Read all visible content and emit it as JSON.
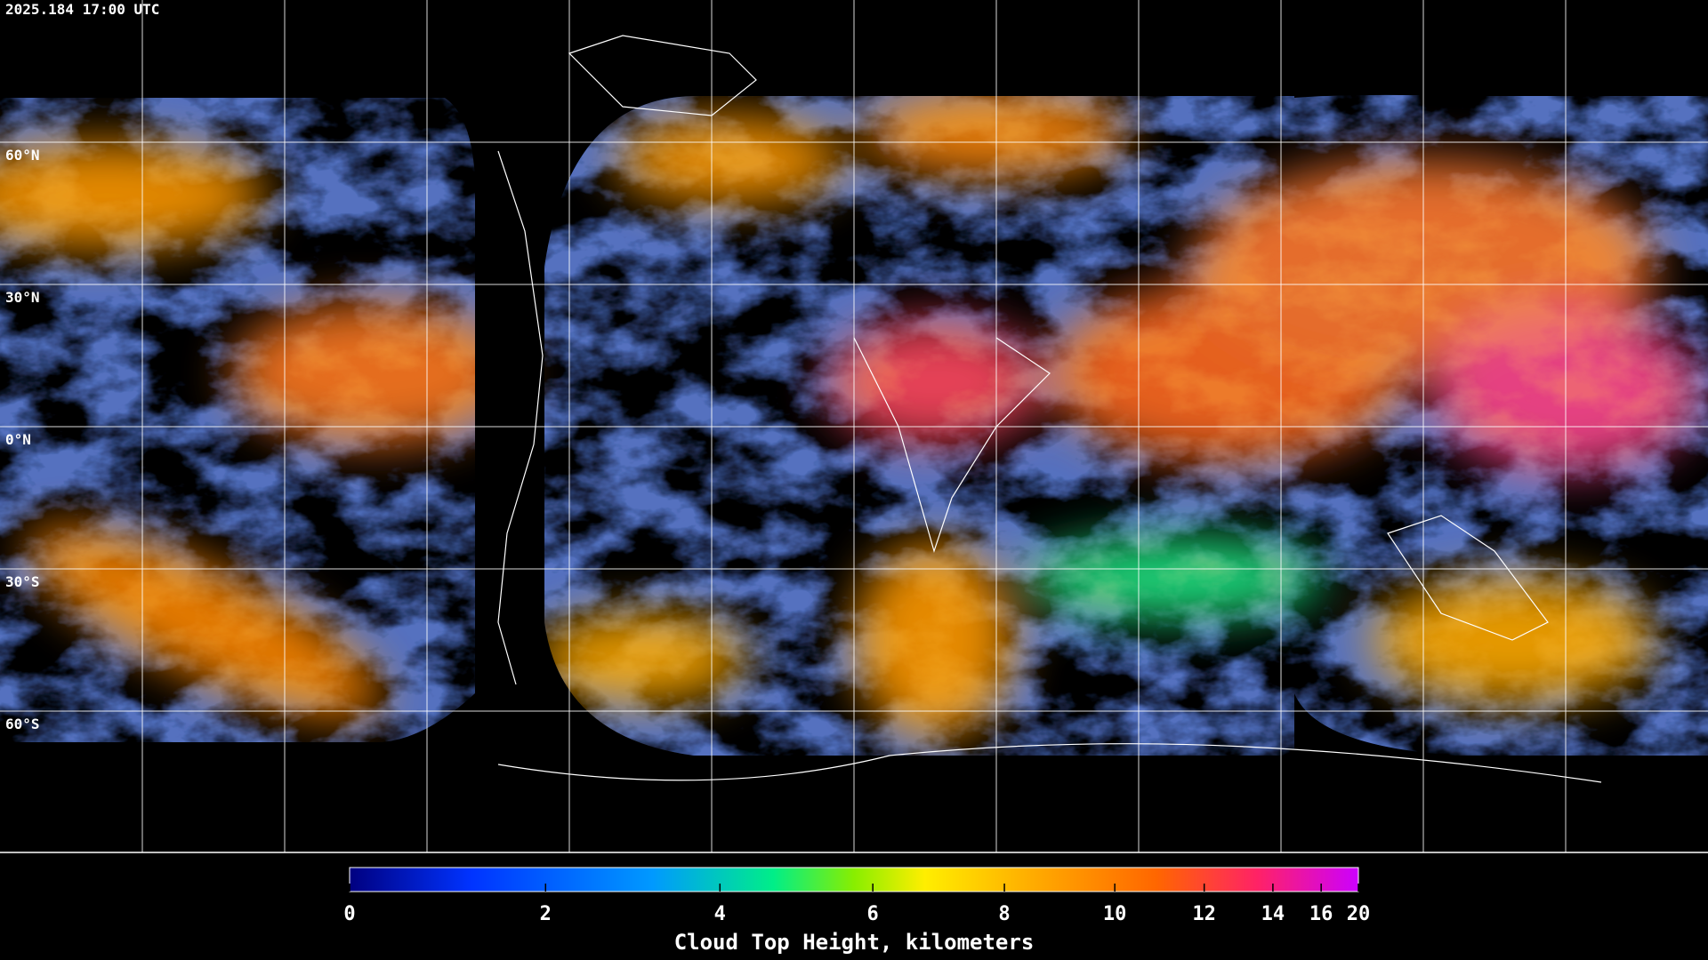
{
  "header": {
    "timestamp": "2025.184 17:00 UTC"
  },
  "map": {
    "latitude_labels": [
      "60°N",
      "30°N",
      "0°N",
      "30°S",
      "60°S"
    ]
  },
  "colorbar": {
    "title": "Cloud Top Height, kilometers",
    "range": [
      0,
      20
    ],
    "ticks": [
      0,
      2,
      4,
      6,
      8,
      10,
      12,
      14,
      16,
      20
    ]
  }
}
